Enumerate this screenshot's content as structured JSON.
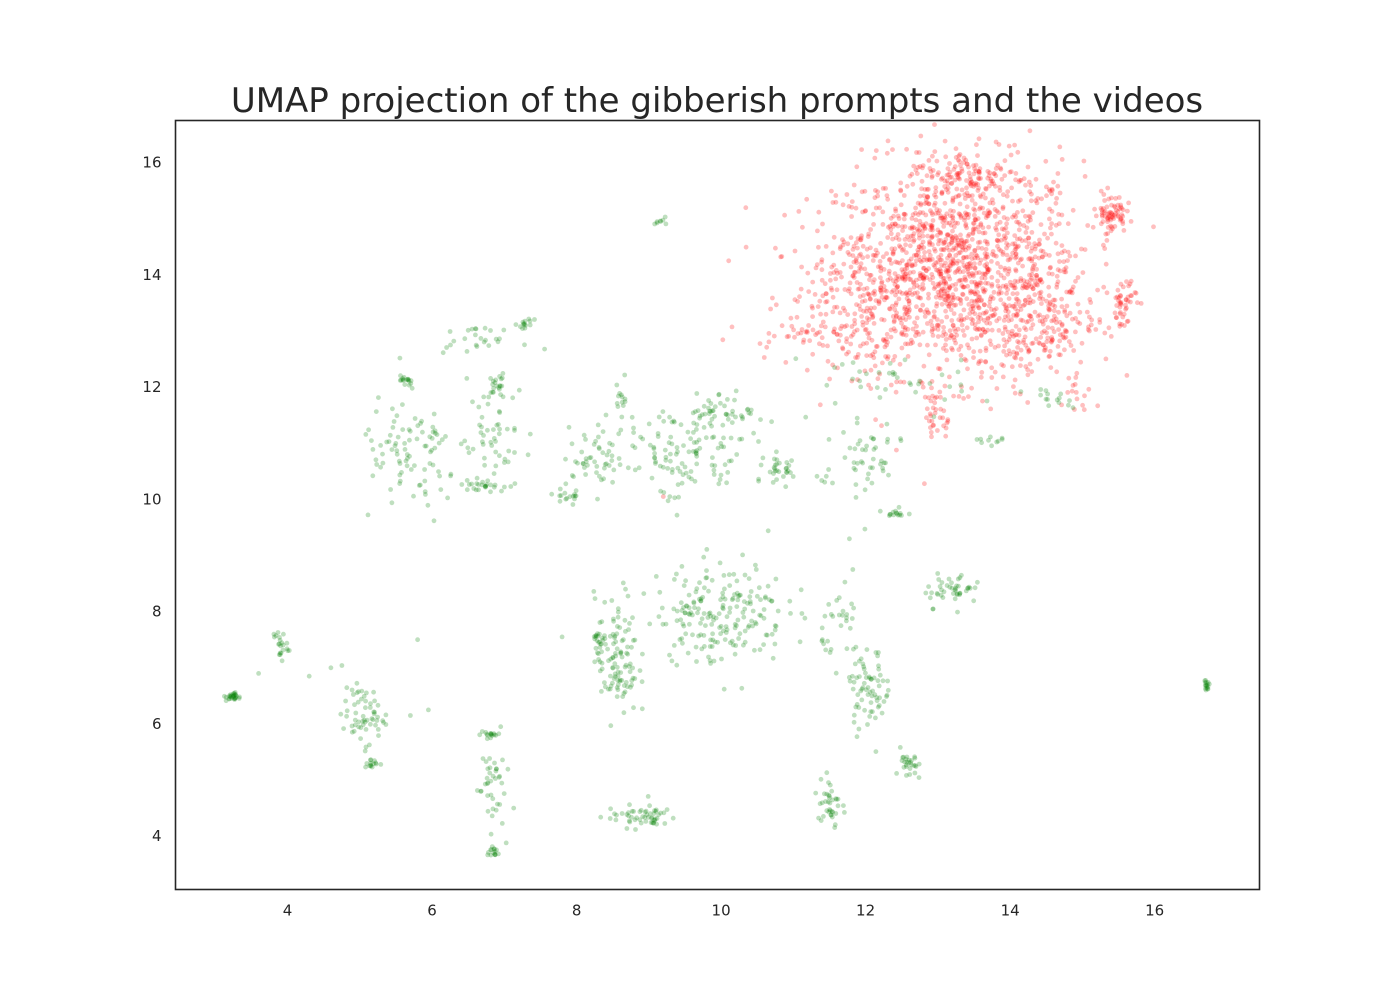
{
  "chart_data": {
    "type": "scatter",
    "title": "UMAP projection of the gibberish prompts and the videos",
    "xlabel": "",
    "ylabel": "",
    "xlim": [
      2.45,
      17.45
    ],
    "ylim": [
      3.05,
      16.75
    ],
    "xticks": [
      4,
      6,
      8,
      10,
      12,
      14,
      16
    ],
    "yticks": [
      4,
      6,
      8,
      10,
      12,
      14,
      16
    ],
    "grid": false,
    "legend": "none",
    "point_alpha": 0.25,
    "series": [
      {
        "color": "#ff0000",
        "clusters": [
          {
            "cx": 13.3,
            "cy": 14.1,
            "sx": 0.85,
            "sy": 0.95,
            "n": 1300
          },
          {
            "cx": 12.0,
            "cy": 13.6,
            "sx": 0.55,
            "sy": 0.7,
            "n": 260
          },
          {
            "cx": 14.3,
            "cy": 13.2,
            "sx": 0.45,
            "sy": 0.55,
            "n": 180
          },
          {
            "cx": 13.5,
            "cy": 15.75,
            "sx": 0.4,
            "sy": 0.22,
            "n": 110
          },
          {
            "cx": 15.4,
            "cy": 15.1,
            "sx": 0.1,
            "sy": 0.18,
            "n": 70
          },
          {
            "cx": 15.55,
            "cy": 13.5,
            "sx": 0.1,
            "sy": 0.25,
            "n": 45
          },
          {
            "cx": 11.0,
            "cy": 12.95,
            "sx": 0.35,
            "sy": 0.08,
            "n": 25
          },
          {
            "cx": 13.0,
            "cy": 11.5,
            "sx": 0.1,
            "sy": 0.25,
            "n": 30
          },
          {
            "cx": 14.9,
            "cy": 11.9,
            "sx": 0.1,
            "sy": 0.2,
            "n": 12
          }
        ],
        "points": [
          [
            9.2,
            10.05
          ]
        ]
      },
      {
        "color": "#008000",
        "clusters": [
          {
            "cx": 3.25,
            "cy": 6.48,
            "sx": 0.05,
            "sy": 0.04,
            "n": 28
          },
          {
            "cx": 3.9,
            "cy": 7.4,
            "sx": 0.05,
            "sy": 0.15,
            "n": 22
          },
          {
            "cx": 5.05,
            "cy": 6.15,
            "sx": 0.15,
            "sy": 0.25,
            "n": 60
          },
          {
            "cx": 5.15,
            "cy": 5.3,
            "sx": 0.05,
            "sy": 0.05,
            "n": 14
          },
          {
            "cx": 6.8,
            "cy": 5.8,
            "sx": 0.07,
            "sy": 0.05,
            "n": 16
          },
          {
            "cx": 6.8,
            "cy": 4.9,
            "sx": 0.1,
            "sy": 0.4,
            "n": 40
          },
          {
            "cx": 6.85,
            "cy": 3.72,
            "sx": 0.04,
            "sy": 0.06,
            "n": 14
          },
          {
            "cx": 8.9,
            "cy": 4.35,
            "sx": 0.25,
            "sy": 0.1,
            "n": 55
          },
          {
            "cx": 8.55,
            "cy": 7.2,
            "sx": 0.15,
            "sy": 0.55,
            "n": 110
          },
          {
            "cx": 8.3,
            "cy": 7.5,
            "sx": 0.06,
            "sy": 0.05,
            "n": 16
          },
          {
            "cx": 10.0,
            "cy": 8.0,
            "sx": 0.45,
            "sy": 0.45,
            "n": 200
          },
          {
            "cx": 11.5,
            "cy": 4.6,
            "sx": 0.08,
            "sy": 0.3,
            "n": 38
          },
          {
            "cx": 12.05,
            "cy": 6.6,
            "sx": 0.15,
            "sy": 0.35,
            "n": 70
          },
          {
            "cx": 12.6,
            "cy": 5.25,
            "sx": 0.06,
            "sy": 0.15,
            "n": 28
          },
          {
            "cx": 13.2,
            "cy": 8.4,
            "sx": 0.2,
            "sy": 0.15,
            "n": 45
          },
          {
            "cx": 11.7,
            "cy": 7.8,
            "sx": 0.15,
            "sy": 0.35,
            "n": 30
          },
          {
            "cx": 16.72,
            "cy": 6.67,
            "sx": 0.04,
            "sy": 0.04,
            "n": 16
          },
          {
            "cx": 5.7,
            "cy": 10.7,
            "sx": 0.35,
            "sy": 0.55,
            "n": 90
          },
          {
            "cx": 5.65,
            "cy": 12.1,
            "sx": 0.05,
            "sy": 0.08,
            "n": 16
          },
          {
            "cx": 6.9,
            "cy": 12.05,
            "sx": 0.06,
            "sy": 0.1,
            "n": 20
          },
          {
            "cx": 6.8,
            "cy": 11.3,
            "sx": 0.3,
            "sy": 0.4,
            "n": 50
          },
          {
            "cx": 6.7,
            "cy": 10.25,
            "sx": 0.15,
            "sy": 0.05,
            "n": 26
          },
          {
            "cx": 6.6,
            "cy": 12.85,
            "sx": 0.3,
            "sy": 0.1,
            "n": 26
          },
          {
            "cx": 7.3,
            "cy": 13.12,
            "sx": 0.05,
            "sy": 0.04,
            "n": 14
          },
          {
            "cx": 8.3,
            "cy": 10.7,
            "sx": 0.25,
            "sy": 0.3,
            "n": 55
          },
          {
            "cx": 7.9,
            "cy": 10.05,
            "sx": 0.1,
            "sy": 0.06,
            "n": 15
          },
          {
            "cx": 8.6,
            "cy": 11.8,
            "sx": 0.08,
            "sy": 0.15,
            "n": 14
          },
          {
            "cx": 9.5,
            "cy": 10.8,
            "sx": 0.45,
            "sy": 0.45,
            "n": 120
          },
          {
            "cx": 10.1,
            "cy": 11.6,
            "sx": 0.25,
            "sy": 0.15,
            "n": 40
          },
          {
            "cx": 10.85,
            "cy": 10.5,
            "sx": 0.12,
            "sy": 0.15,
            "n": 30
          },
          {
            "cx": 11.9,
            "cy": 10.7,
            "sx": 0.3,
            "sy": 0.5,
            "n": 55
          },
          {
            "cx": 12.45,
            "cy": 9.75,
            "sx": 0.06,
            "sy": 0.04,
            "n": 14
          },
          {
            "cx": 9.15,
            "cy": 14.92,
            "sx": 0.07,
            "sy": 0.05,
            "n": 8
          },
          {
            "cx": 13.7,
            "cy": 11.05,
            "sx": 0.1,
            "sy": 0.04,
            "n": 10
          },
          {
            "cx": 14.6,
            "cy": 11.8,
            "sx": 0.2,
            "sy": 0.1,
            "n": 15
          },
          {
            "cx": 12.3,
            "cy": 12.1,
            "sx": 0.6,
            "sy": 0.3,
            "n": 35
          }
        ],
        "points": [
          [
            3.6,
            6.9
          ],
          [
            4.3,
            6.85
          ],
          [
            4.6,
            7.0
          ],
          [
            5.8,
            7.5
          ],
          [
            5.95,
            6.25
          ],
          [
            5.7,
            6.15
          ],
          [
            7.8,
            7.55
          ],
          [
            6.95,
            5.95
          ]
        ]
      }
    ]
  }
}
